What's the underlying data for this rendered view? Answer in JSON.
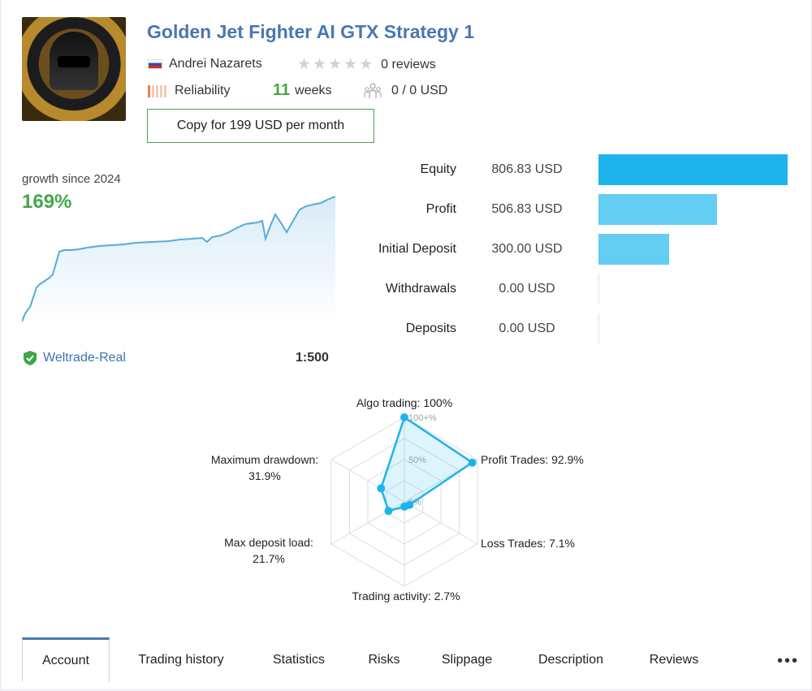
{
  "header": {
    "title": "Golden Jet Fighter AI GTX Strategy 1",
    "author": "Andrei Nazarets",
    "reviews": "0 reviews",
    "reliability_label": "Reliability",
    "weeks_num": "11",
    "weeks_label": "weeks",
    "subscribers": "0 / 0 USD",
    "copy_button": "Copy for 199 USD per month"
  },
  "growth": {
    "label": "growth since 2024",
    "value": "169%",
    "broker": "Weltrade-Real",
    "leverage": "1:500"
  },
  "stats": [
    {
      "label": "Equity",
      "value": "806.83 USD",
      "amount": 806.83,
      "color": "#1fb3ec"
    },
    {
      "label": "Profit",
      "value": "506.83 USD",
      "amount": 506.83,
      "color": "#63cdf2"
    },
    {
      "label": "Initial Deposit",
      "value": "300.00 USD",
      "amount": 300.0,
      "color": "#63cdf2"
    },
    {
      "label": "Withdrawals",
      "value": "0.00 USD",
      "amount": 0,
      "color": "#63cdf2"
    },
    {
      "label": "Deposits",
      "value": "0.00 USD",
      "amount": 0,
      "color": "#63cdf2"
    }
  ],
  "chart_data": {
    "type": "radar",
    "axes": [
      {
        "label": "Algo trading: 100%",
        "value": 100
      },
      {
        "label": "Profit Trades: 92.9%",
        "value": 92.9
      },
      {
        "label": "Loss Trades: 7.1%",
        "value": 7.1
      },
      {
        "label": "Trading activity: 2.7%",
        "value": 2.7
      },
      {
        "label": "Max deposit load:\n21.7%",
        "value": 21.7
      },
      {
        "label": "Maximum drawdown:\n31.9%",
        "value": 31.9
      }
    ],
    "ticks": [
      "100+%",
      "50%",
      "0%"
    ],
    "range": [
      0,
      100
    ],
    "color": "#1fb3ec"
  },
  "tabs": [
    "Account",
    "Trading history",
    "Statistics",
    "Risks",
    "Slippage",
    "Description",
    "Reviews"
  ],
  "more": "•••"
}
